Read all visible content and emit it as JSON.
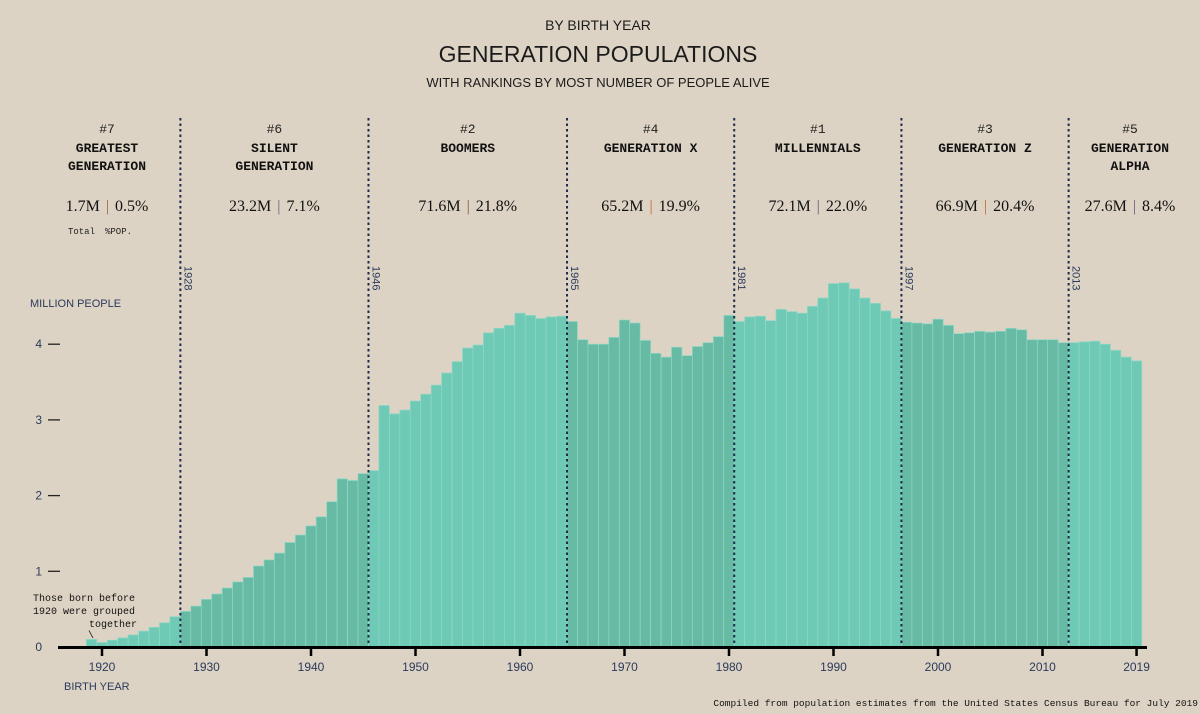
{
  "header": {
    "kicker": "BY BIRTH YEAR",
    "title": "GENERATION POPULATIONS",
    "subtitle": "WITH RANKINGS BY MOST NUMBER OF PEOPLE ALIVE"
  },
  "stats_legend": {
    "total": "Total",
    "pct": "%POP."
  },
  "generations": [
    {
      "rank": "#7",
      "name": [
        "GREATEST",
        "GENERATION"
      ],
      "total": "1.7M",
      "pct": "0.5%",
      "start_label": "",
      "pipe_color": "#a0623a"
    },
    {
      "rank": "#6",
      "name": [
        "SILENT",
        "GENERATION"
      ],
      "total": "23.2M",
      "pct": "7.1%",
      "start_label": "1928",
      "pipe_color": "#6b6470"
    },
    {
      "rank": "#2",
      "name": [
        "BOOMERS"
      ],
      "total": "71.6M",
      "pct": "21.8%",
      "start_label": "1946",
      "pipe_color": "#8a5a3a"
    },
    {
      "rank": "#4",
      "name": [
        "GENERATION X"
      ],
      "total": "65.2M",
      "pct": "19.9%",
      "start_label": "1965",
      "pipe_color": "#c0692d"
    },
    {
      "rank": "#1",
      "name": [
        "MILLENNIALS"
      ],
      "total": "72.1M",
      "pct": "22.0%",
      "start_label": "1981",
      "pipe_color": "#6a5a78"
    },
    {
      "rank": "#3",
      "name": [
        "GENERATION Z"
      ],
      "total": "66.9M",
      "pct": "20.4%",
      "start_label": "1997",
      "pipe_color": "#c0692d"
    },
    {
      "rank": "#5",
      "name": [
        "GENERATION",
        "ALPHA"
      ],
      "total": "27.6M",
      "pct": "8.4%",
      "start_label": "2013",
      "pipe_color": "#6a5a78"
    }
  ],
  "colors": {
    "background": "#ddd3c4",
    "bar_light": "#6fcab5",
    "bar_dark": "#67bba5",
    "divider": "#1f2a4a",
    "axis_text": "#2b3a5c"
  },
  "annotation": [
    "Those born before",
    "1920 were grouped",
    "together",
    "\\"
  ],
  "footer": "Compiled from population estimates from the United States Census Bureau for July 2019",
  "chart_data": {
    "type": "bar",
    "ylabel": "MILLION PEOPLE",
    "xlabel": "BIRTH YEAR",
    "ylim": [
      0,
      5
    ],
    "yticks": [
      "0",
      "1",
      "2",
      "3",
      "4"
    ],
    "xticks": [
      "1920",
      "1930",
      "1940",
      "1950",
      "1960",
      "1970",
      "1980",
      "1990",
      "2000",
      "2010",
      "2019"
    ],
    "grid": false,
    "generation_start_years": [
      1919,
      1928,
      1946,
      1965,
      1981,
      1997,
      2013
    ],
    "x": [
      1919,
      1920,
      1921,
      1922,
      1923,
      1924,
      1925,
      1926,
      1927,
      1928,
      1929,
      1930,
      1931,
      1932,
      1933,
      1934,
      1935,
      1936,
      1937,
      1938,
      1939,
      1940,
      1941,
      1942,
      1943,
      1944,
      1945,
      1946,
      1947,
      1948,
      1949,
      1950,
      1951,
      1952,
      1953,
      1954,
      1955,
      1956,
      1957,
      1958,
      1959,
      1960,
      1961,
      1962,
      1963,
      1964,
      1965,
      1966,
      1967,
      1968,
      1969,
      1970,
      1971,
      1972,
      1973,
      1974,
      1975,
      1976,
      1977,
      1978,
      1979,
      1980,
      1981,
      1982,
      1983,
      1984,
      1985,
      1986,
      1987,
      1988,
      1989,
      1990,
      1991,
      1992,
      1993,
      1994,
      1995,
      1996,
      1997,
      1998,
      1999,
      2000,
      2001,
      2002,
      2003,
      2004,
      2005,
      2006,
      2007,
      2008,
      2009,
      2010,
      2011,
      2012,
      2013,
      2014,
      2015,
      2016,
      2017,
      2018,
      2019
    ],
    "values": [
      0.1,
      0.06,
      0.09,
      0.12,
      0.16,
      0.21,
      0.26,
      0.32,
      0.4,
      0.47,
      0.54,
      0.63,
      0.7,
      0.78,
      0.86,
      0.92,
      1.07,
      1.15,
      1.24,
      1.38,
      1.48,
      1.6,
      1.72,
      1.92,
      2.22,
      2.2,
      2.29,
      2.33,
      3.19,
      3.08,
      3.13,
      3.25,
      3.34,
      3.46,
      3.62,
      3.77,
      3.95,
      3.99,
      4.15,
      4.21,
      4.25,
      4.41,
      4.38,
      4.34,
      4.36,
      4.37,
      4.3,
      4.06,
      4.0,
      4.0,
      4.09,
      4.32,
      4.28,
      4.05,
      3.88,
      3.83,
      3.96,
      3.85,
      3.97,
      4.02,
      4.1,
      4.38,
      4.3,
      4.36,
      4.37,
      4.31,
      4.46,
      4.43,
      4.41,
      4.5,
      4.61,
      4.8,
      4.81,
      4.73,
      4.61,
      4.54,
      4.44,
      4.34,
      4.29,
      4.28,
      4.27,
      4.33,
      4.25,
      4.14,
      4.15,
      4.17,
      4.16,
      4.17,
      4.21,
      4.19,
      4.06,
      4.06,
      4.06,
      4.02,
      4.02,
      4.03,
      4.04,
      4.0,
      3.92,
      3.83,
      3.78
    ]
  }
}
